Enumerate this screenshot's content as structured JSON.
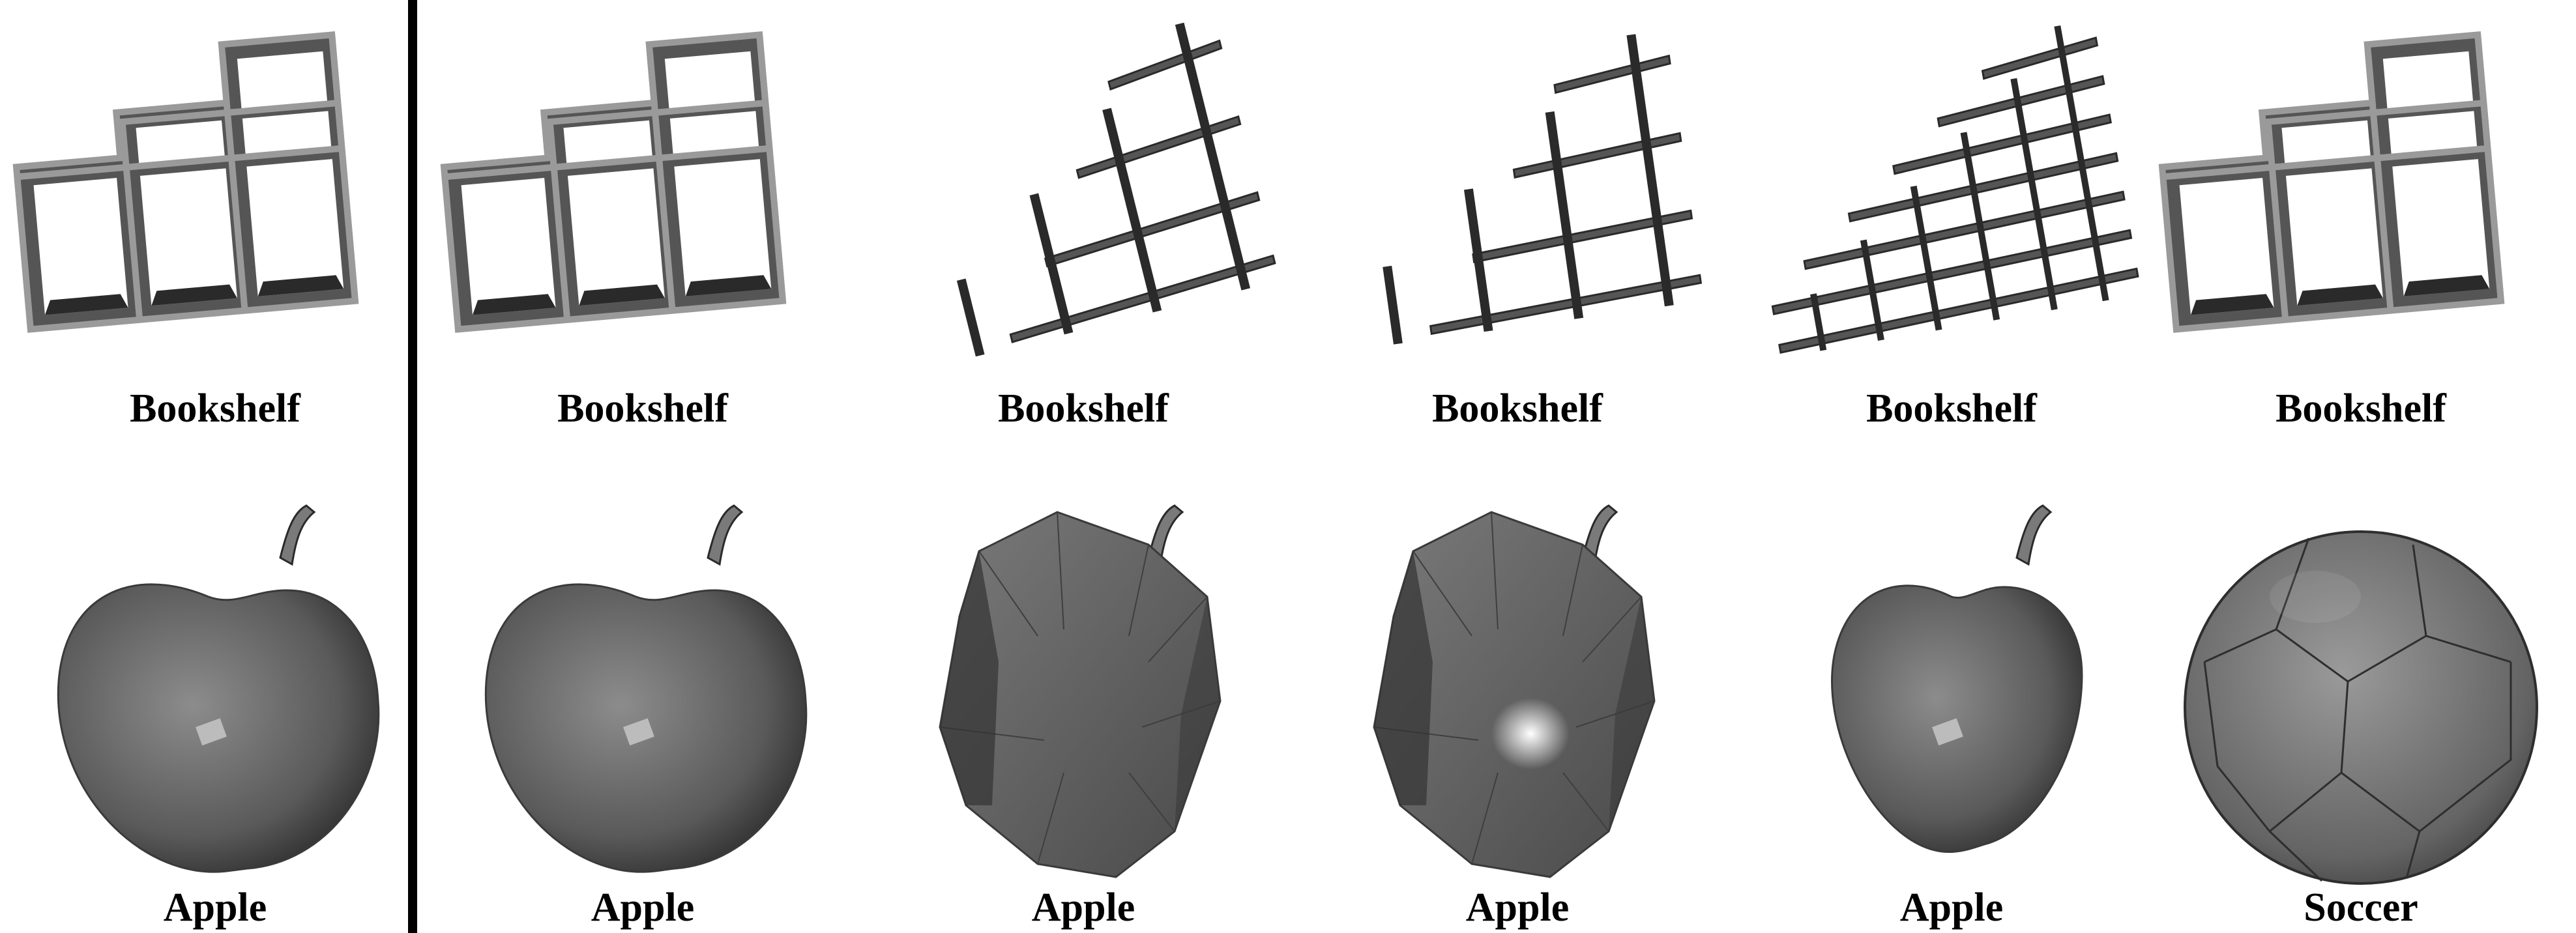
{
  "rows": [
    {
      "cells": [
        {
          "label": "Bookshelf",
          "shape": "bookshelf-icon",
          "variant": "original"
        },
        {
          "label": "Bookshelf",
          "shape": "bookshelf-icon",
          "variant": "original"
        },
        {
          "label": "Bookshelf",
          "shape": "bookshelf-icon",
          "variant": "thin-wire"
        },
        {
          "label": "Bookshelf",
          "shape": "bookshelf-icon",
          "variant": "thin-tilted"
        },
        {
          "label": "Bookshelf",
          "shape": "bookshelf-icon",
          "variant": "thin-dense"
        },
        {
          "label": "Bookshelf",
          "shape": "bookshelf-icon",
          "variant": "original"
        }
      ]
    },
    {
      "cells": [
        {
          "label": "Apple",
          "shape": "apple-icon",
          "variant": "smooth"
        },
        {
          "label": "Apple",
          "shape": "apple-icon",
          "variant": "smooth"
        },
        {
          "label": "Apple",
          "shape": "apple-icon",
          "variant": "faceted"
        },
        {
          "label": "Apple",
          "shape": "apple-icon",
          "variant": "faceted-shiny"
        },
        {
          "label": "Apple",
          "shape": "apple-icon",
          "variant": "smooth-small"
        },
        {
          "label": "Soccer",
          "shape": "soccer-ball-icon",
          "variant": "sphere"
        }
      ]
    }
  ],
  "colors": {
    "shade_dark": "#2a2a2a",
    "shade_mid": "#555555",
    "shade_light": "#8a8a8a",
    "frame_edge": "#9a9a9a",
    "divider": "#000000"
  }
}
